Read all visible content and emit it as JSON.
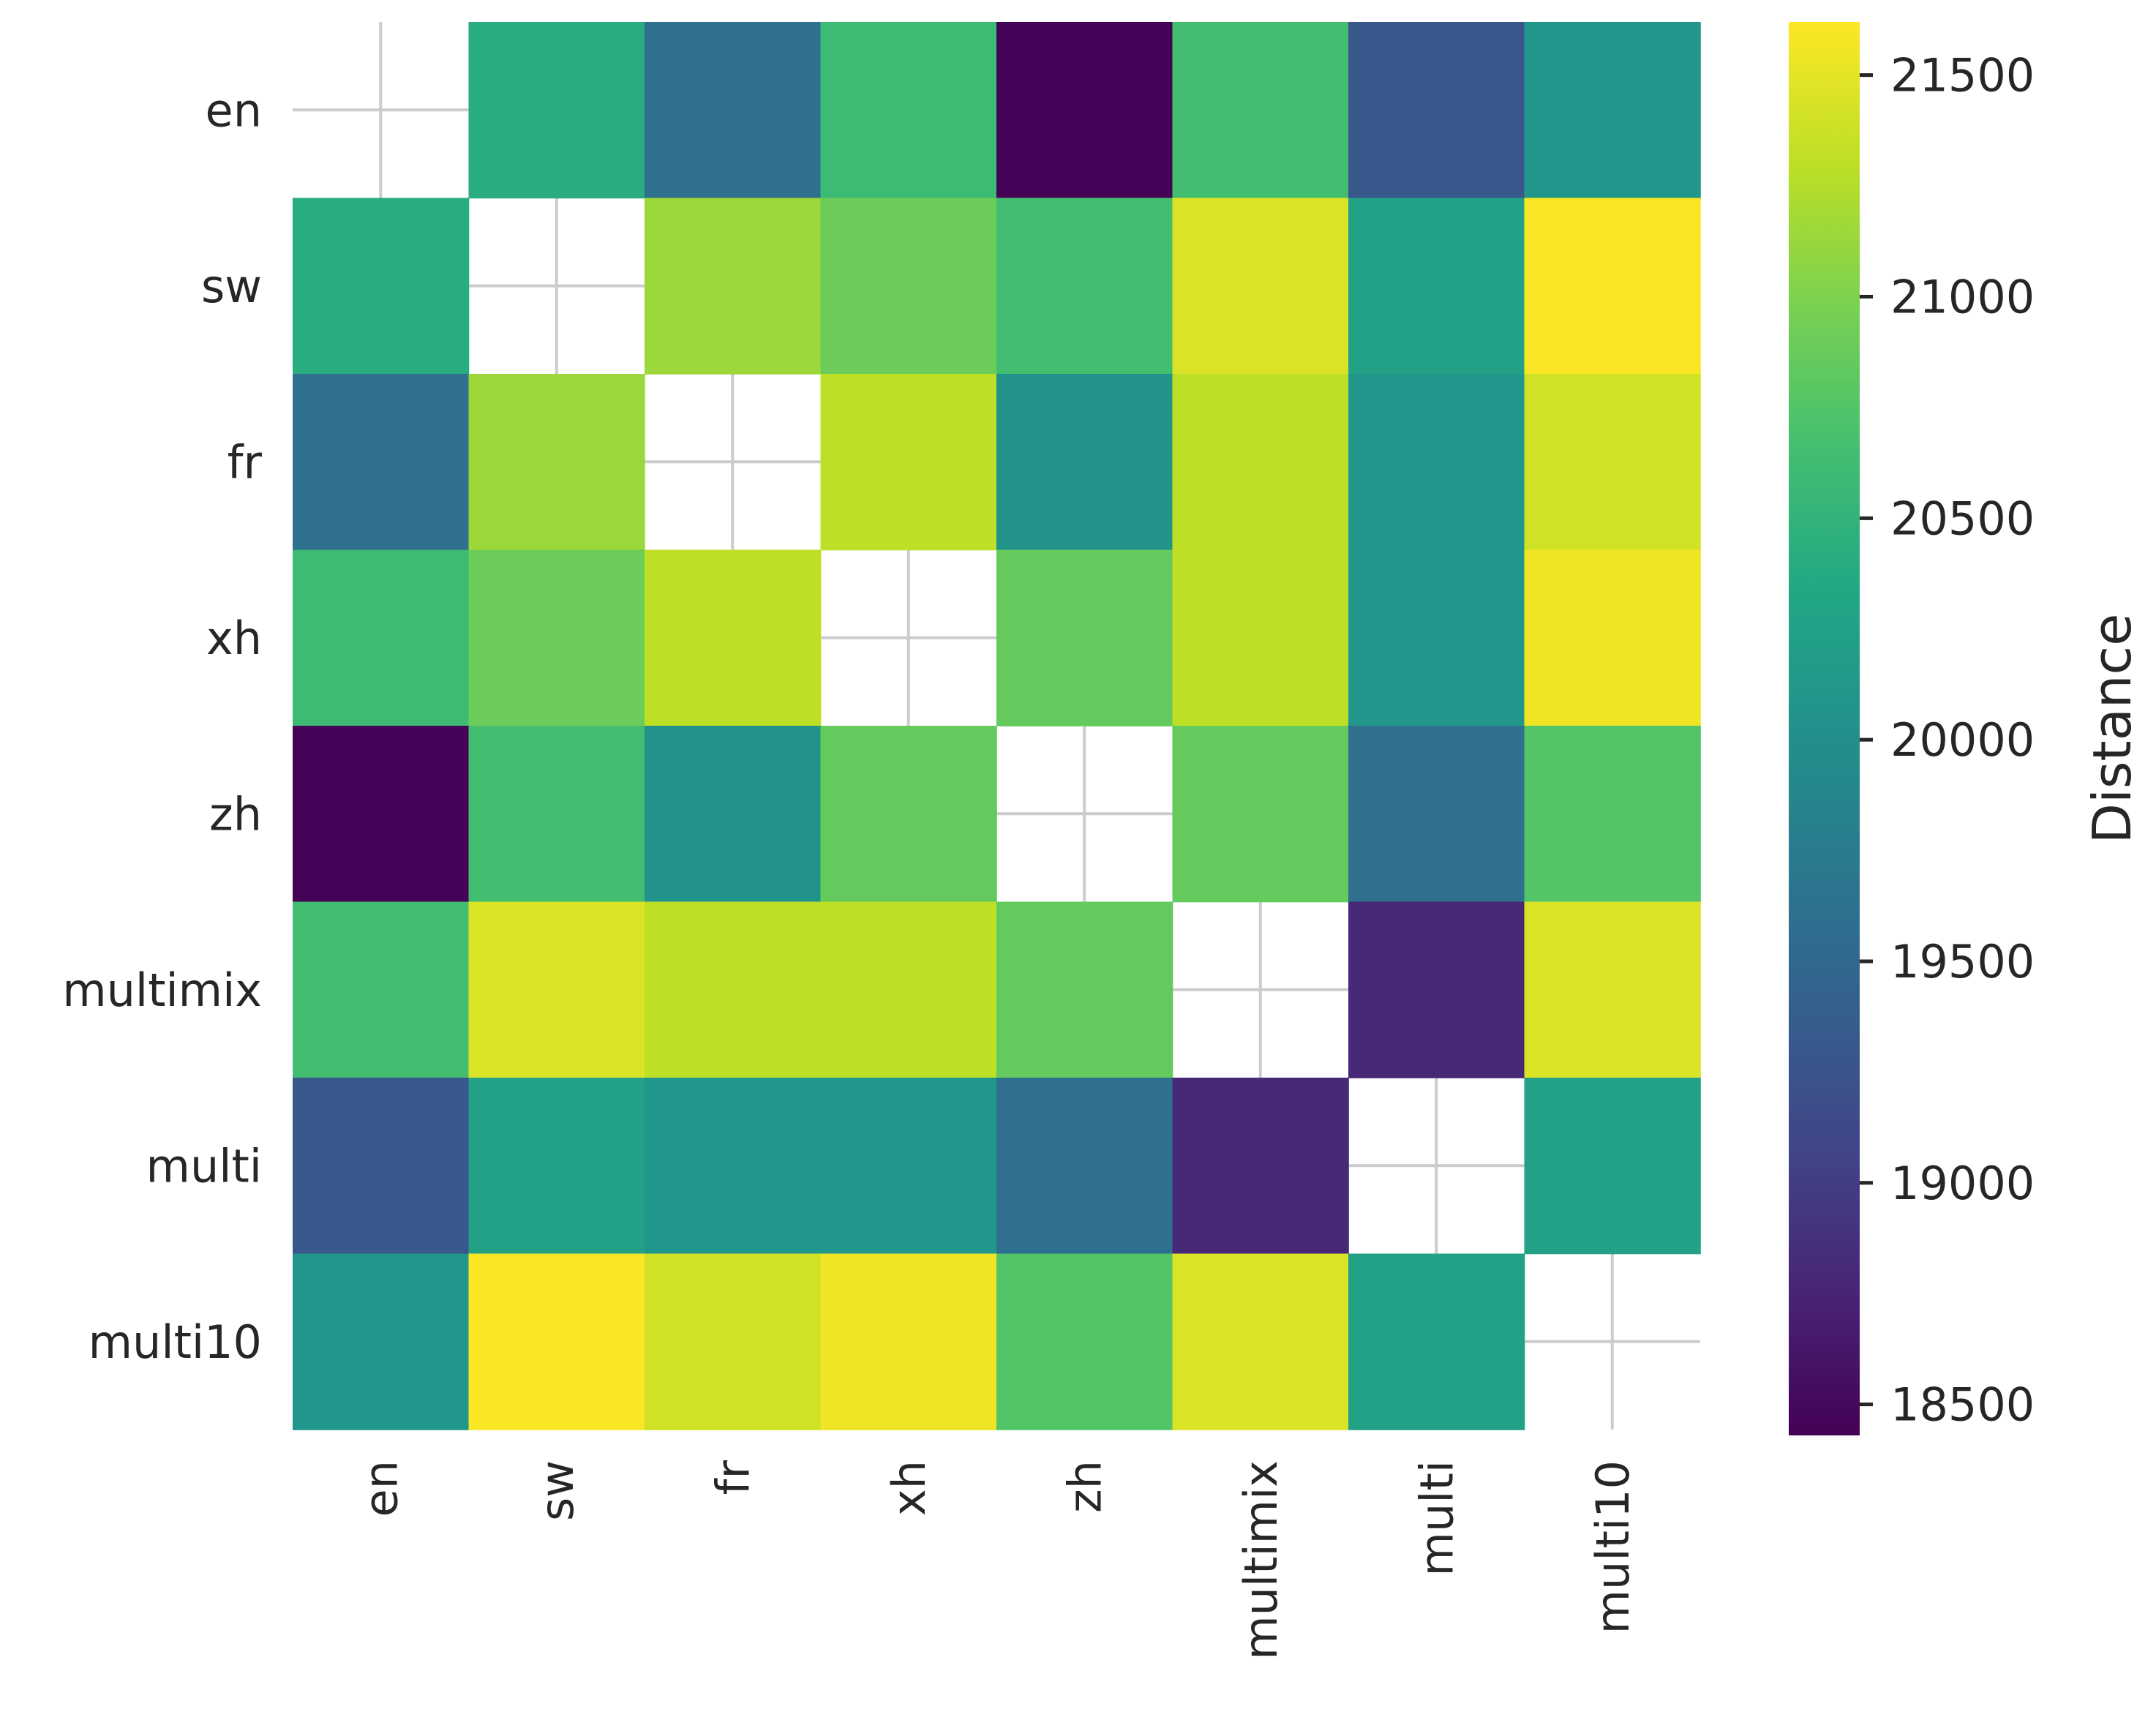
{
  "chart_data": {
    "type": "heatmap",
    "title": "",
    "xlabel": "",
    "ylabel": "",
    "x_categories": [
      "en",
      "sw",
      "fr",
      "xh",
      "zh",
      "multimix",
      "multi",
      "multi10"
    ],
    "y_categories": [
      "en",
      "sw",
      "fr",
      "xh",
      "zh",
      "multimix",
      "multi",
      "multi10"
    ],
    "values": [
      [
        null,
        20400,
        19600,
        20600,
        18450,
        20650,
        19300,
        20100
      ],
      [
        20400,
        null,
        21150,
        20900,
        20650,
        21450,
        20250,
        21600
      ],
      [
        19600,
        21150,
        null,
        21300,
        20050,
        21300,
        20100,
        21400
      ],
      [
        20600,
        20900,
        21300,
        null,
        20850,
        21300,
        20100,
        21550
      ],
      [
        18450,
        20650,
        20050,
        20850,
        null,
        20850,
        19600,
        20750
      ],
      [
        20650,
        21450,
        21300,
        21300,
        20850,
        null,
        18800,
        21450
      ],
      [
        19300,
        20250,
        20100,
        20100,
        19600,
        18800,
        null,
        20250
      ],
      [
        20100,
        21600,
        21400,
        21550,
        20750,
        21450,
        20250,
        null
      ]
    ],
    "colormap": "viridis",
    "colorbar": {
      "label": "Distance",
      "range": [
        18430,
        21620
      ],
      "ticks": [
        18500,
        19000,
        19500,
        20000,
        20500,
        21000,
        21500
      ],
      "tick_labels": [
        "18500",
        "19000",
        "19500",
        "20000",
        "20500",
        "21000",
        "21500"
      ]
    },
    "diagonal": "empty",
    "grid": true
  }
}
